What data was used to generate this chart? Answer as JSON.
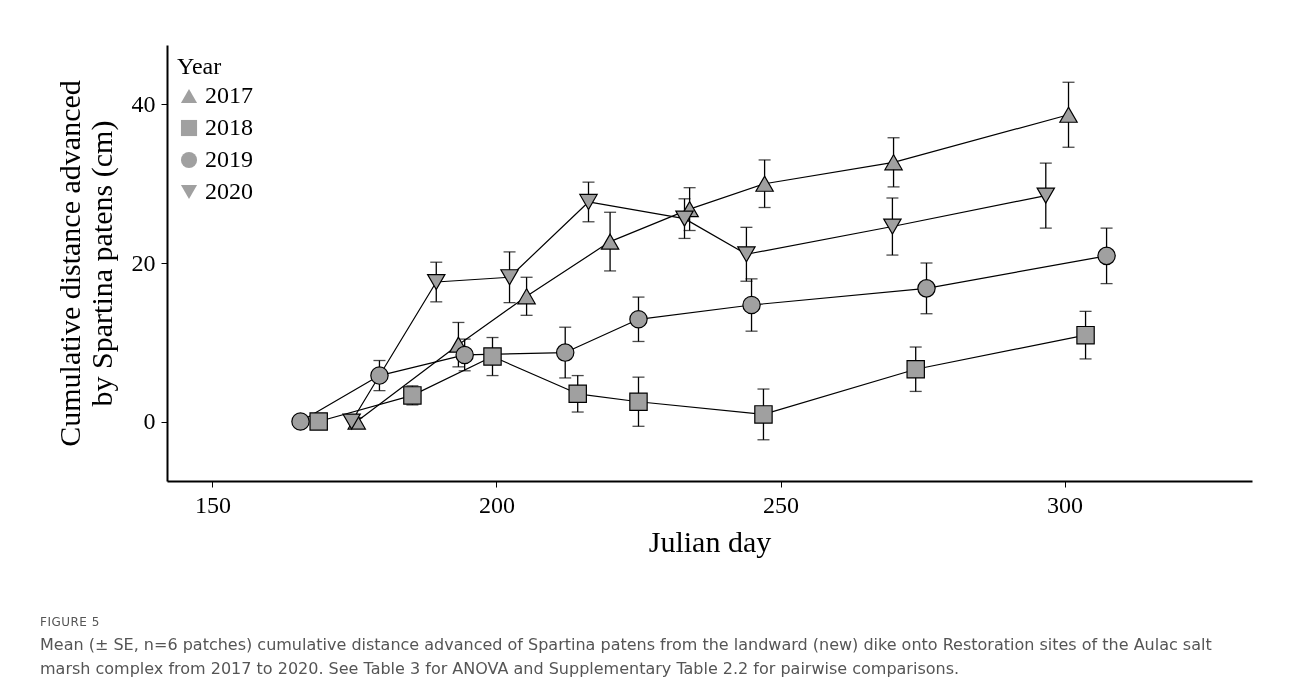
{
  "chart_data": {
    "type": "line",
    "xlabel": "Julian day",
    "ylabel": "Cumulative distance advanced by Spartina patens (cm)",
    "legend_title": "Year",
    "legend": "top left",
    "grid": false,
    "xlim": [
      142,
      333
    ],
    "xticks": [
      150,
      200,
      250,
      300
    ],
    "ylim": [
      -7.5,
      47.5
    ],
    "yticks": [
      0,
      20,
      40
    ],
    "series": [
      {
        "name": "2017",
        "color": "#a0a0a0",
        "marker": "triangle",
        "x": [
          175.4,
          193.3,
          205.3,
          220,
          234,
          247.2,
          269.9,
          300.7
        ],
        "values": [
          0,
          9.7,
          15.8,
          22.7,
          26.8,
          30,
          32.7,
          38.7
        ],
        "errors": [
          0.5,
          2.8,
          2.4,
          3.7,
          2.7,
          3,
          3.1,
          4.1
        ]
      },
      {
        "name": "2018",
        "color": "#a0a0a0",
        "marker": "square",
        "x": [
          168.7,
          185.2,
          199.3,
          214.3,
          225,
          247,
          273.8,
          303.7
        ],
        "values": [
          0,
          3.3,
          8.2,
          3.5,
          2.5,
          0.9,
          6.6,
          10.9
        ],
        "errors": [
          null,
          1.2,
          2.4,
          2.3,
          3.1,
          3.2,
          2.8,
          3
        ]
      },
      {
        "name": "2019",
        "color": "#a0a0a0",
        "marker": "circle",
        "x": [
          165.5,
          179.4,
          194.4,
          212.1,
          225,
          244.9,
          275.7,
          307.4
        ],
        "values": [
          0,
          5.8,
          8.4,
          8.7,
          12.9,
          14.7,
          16.8,
          20.9
        ],
        "errors": [
          null,
          1.9,
          2,
          3.2,
          2.8,
          3.3,
          3.2,
          3.5
        ]
      },
      {
        "name": "2020",
        "color": "#a0a0a0",
        "marker": "triangle-down",
        "x": [
          174.5,
          189.4,
          202.3,
          216.2,
          233.1,
          244,
          269.7,
          296.7
        ],
        "values": [
          0,
          17.6,
          18.2,
          27.7,
          25.6,
          21.1,
          24.6,
          28.5
        ],
        "errors": [
          null,
          2.5,
          3.2,
          2.5,
          2.5,
          3.4,
          3.6,
          4.1
        ]
      }
    ],
    "annotations": [
      "FIGURE 5",
      "Mean (± SE, n=6 patches) cumulative distance advanced of Spartina patens from the landward (new) dike onto Restoration sites of the Aulac salt marsh complex from 2017 to 2020. See Table 3 for ANOVA and Supplementary Table 2.2 for pairwise comparisons."
    ]
  }
}
